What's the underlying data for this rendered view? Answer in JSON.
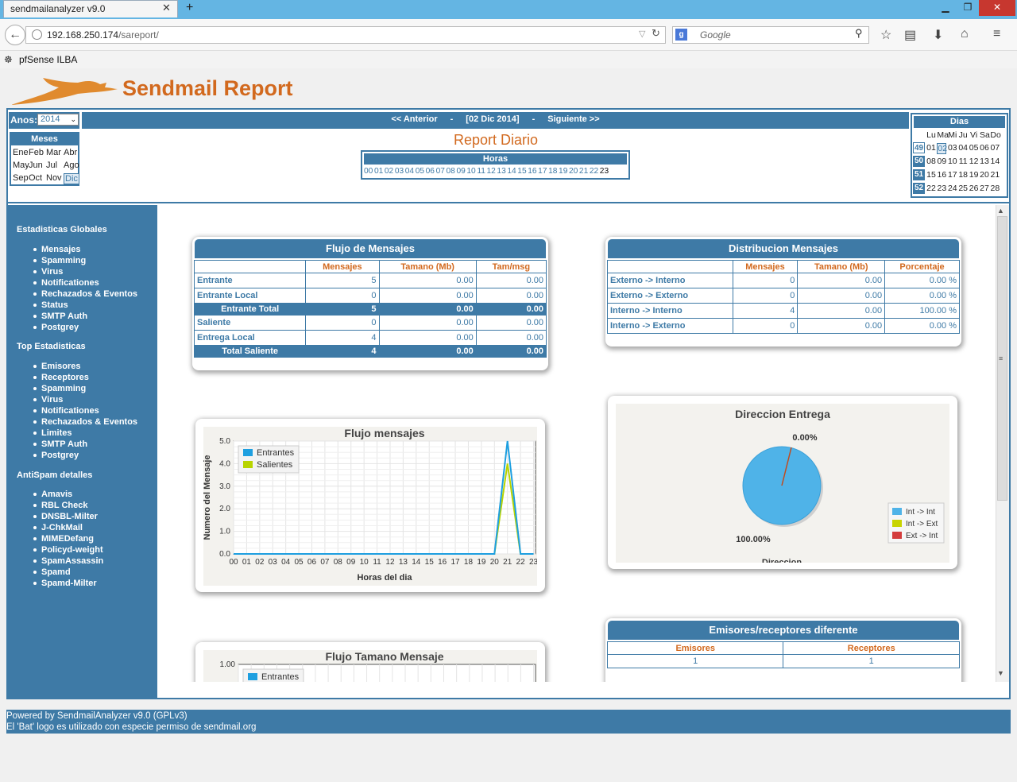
{
  "browser": {
    "tab_title": "sendmailanalyzer v9.0",
    "url_host": "192.168.250.174",
    "url_path": "/sareport/",
    "search_placeholder": "Google",
    "bookmark": "pfSense ILBA"
  },
  "page": {
    "title": "Sendmail Report",
    "anos_label": "Anos:",
    "anos_value": "2014",
    "meses_title": "Meses",
    "months": [
      "Ene",
      "Feb",
      "Mar",
      "Abr",
      "May",
      "Jun",
      "Jul",
      "Ago",
      "Sep",
      "Oct",
      "Nov",
      "Dic"
    ],
    "selected_month": "Dic",
    "nav_prev": "<< Anterior",
    "nav_sep": "-",
    "nav_date": "[02 Dic 2014]",
    "nav_next": "Siguiente >>",
    "report_title": "Report Diario",
    "horas_title": "Horas",
    "hours": [
      "00",
      "01",
      "02",
      "03",
      "04",
      "05",
      "06",
      "07",
      "08",
      "09",
      "10",
      "11",
      "12",
      "13",
      "14",
      "15",
      "16",
      "17",
      "18",
      "19",
      "20",
      "21",
      "22",
      "23"
    ],
    "current_hour": "23",
    "dias_title": "Dias",
    "day_headers": [
      "Lu",
      "Ma",
      "Mi",
      "Ju",
      "Vi",
      "Sa",
      "Do"
    ],
    "weeks": [
      {
        "wk": "49",
        "days": [
          "01",
          "02",
          "03",
          "04",
          "05",
          "06",
          "07"
        ]
      },
      {
        "wk": "50",
        "days": [
          "08",
          "09",
          "10",
          "11",
          "12",
          "13",
          "14"
        ]
      },
      {
        "wk": "51",
        "days": [
          "15",
          "16",
          "17",
          "18",
          "19",
          "20",
          "21"
        ]
      },
      {
        "wk": "52",
        "days": [
          "22",
          "23",
          "24",
          "25",
          "26",
          "27",
          "28"
        ]
      }
    ],
    "selected_day": "02"
  },
  "sidebar": {
    "sections": [
      {
        "title": "Estadisticas Globales",
        "items": [
          "Mensajes",
          "Spamming",
          "Virus",
          "Notificationes",
          "Rechazados & Eventos",
          "Status",
          "SMTP Auth",
          "Postgrey"
        ]
      },
      {
        "title": "Top Estadisticas",
        "items": [
          "Emisores",
          "Receptores",
          "Spamming",
          "Virus",
          "Notificationes",
          "Rechazados & Eventos",
          "Limites",
          "SMTP Auth",
          "Postgrey"
        ]
      },
      {
        "title": "AntiSpam detalles",
        "items": [
          "Amavis",
          "RBL Check",
          "DNSBL-Milter",
          "J-ChkMail",
          "MIMEDefang",
          "Policyd-weight",
          "SpamAssassin",
          "Spamd",
          "Spamd-Milter"
        ]
      }
    ]
  },
  "flujo": {
    "title": "Flujo de Mensajes",
    "cols": [
      "Mensajes",
      "Tamano (Mb)",
      "Tam/msg"
    ],
    "rows": [
      {
        "label": "Entrante",
        "v": [
          "5",
          "0.00",
          "0.00"
        ],
        "total": false
      },
      {
        "label": "Entrante Local",
        "v": [
          "0",
          "0.00",
          "0.00"
        ],
        "total": false
      },
      {
        "label": "Entrante Total",
        "v": [
          "5",
          "0.00",
          "0.00"
        ],
        "total": true
      },
      {
        "label": "Saliente",
        "v": [
          "0",
          "0.00",
          "0.00"
        ],
        "total": false
      },
      {
        "label": "Entrega Local",
        "v": [
          "4",
          "0.00",
          "0.00"
        ],
        "total": false
      },
      {
        "label": "Total Saliente",
        "v": [
          "4",
          "0.00",
          "0.00"
        ],
        "total": true
      }
    ]
  },
  "distrib": {
    "title": "Distribucion Mensajes",
    "cols": [
      "Mensajes",
      "Tamano (Mb)",
      "Porcentaje"
    ],
    "rows": [
      {
        "label": "Externo -> Interno",
        "v": [
          "0",
          "0.00",
          "0.00 %"
        ]
      },
      {
        "label": "Externo -> Externo",
        "v": [
          "0",
          "0.00",
          "0.00 %"
        ]
      },
      {
        "label": "Interno -> Interno",
        "v": [
          "4",
          "0.00",
          "100.00 %"
        ]
      },
      {
        "label": "Interno -> Externo",
        "v": [
          "0",
          "0.00",
          "0.00 %"
        ]
      }
    ]
  },
  "emisores": {
    "title": "Emisores/receptores diferente",
    "cols": [
      "Emisores",
      "Receptores"
    ],
    "values": [
      "1",
      "1"
    ]
  },
  "chart_data": [
    {
      "type": "line",
      "title": "Flujo mensajes",
      "xlabel": "Horas del dia",
      "ylabel": "Numero del Mensaje",
      "categories": [
        "00",
        "01",
        "02",
        "03",
        "04",
        "05",
        "06",
        "07",
        "08",
        "09",
        "10",
        "11",
        "12",
        "13",
        "14",
        "15",
        "16",
        "17",
        "18",
        "19",
        "20",
        "21",
        "22",
        "23"
      ],
      "ylim": [
        0,
        5
      ],
      "yticks": [
        "0.0",
        "1.0",
        "2.0",
        "3.0",
        "4.0",
        "5.0"
      ],
      "grid": true,
      "legend": "top-left",
      "series": [
        {
          "name": "Entrantes",
          "color": "#1e9fe0",
          "values": [
            0,
            0,
            0,
            0,
            0,
            0,
            0,
            0,
            0,
            0,
            0,
            0,
            0,
            0,
            0,
            0,
            0,
            0,
            0,
            0,
            0,
            5,
            0,
            0
          ]
        },
        {
          "name": "Salientes",
          "color": "#b8d400",
          "values": [
            0,
            0,
            0,
            0,
            0,
            0,
            0,
            0,
            0,
            0,
            0,
            0,
            0,
            0,
            0,
            0,
            0,
            0,
            0,
            0,
            0,
            4,
            0,
            0
          ]
        }
      ]
    },
    {
      "type": "pie",
      "title": "Direccion Entrega",
      "xlabel": "Direccion",
      "legend": "right",
      "slices": [
        {
          "name": "Int -> Int",
          "value": 100.0,
          "label": "100.00%",
          "color": "#4fb3e8"
        },
        {
          "name": "Int -> Ext",
          "value": 0.0,
          "label": "0.00%",
          "color": "#c8d400"
        },
        {
          "name": "Ext -> Int",
          "value": 0.0,
          "label": "",
          "color": "#d43c3c"
        }
      ]
    },
    {
      "type": "line",
      "title": "Flujo Tamano Mensaje",
      "ylim": [
        0,
        1
      ],
      "yticks": [
        "1.00"
      ],
      "grid": true,
      "legend": "top-left",
      "series": [
        {
          "name": "Entrantes",
          "color": "#1e9fe0",
          "values": []
        }
      ]
    }
  ],
  "footer": {
    "line1": "Powered by SendmailAnalyzer v9.0 (GPLv3)",
    "line2": "El 'Bat' logo es utilizado con especie permiso de sendmail.org"
  }
}
